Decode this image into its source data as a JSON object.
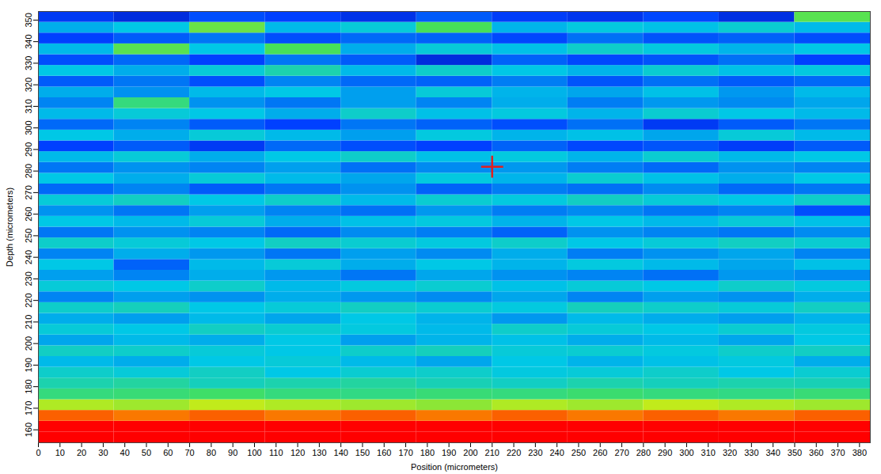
{
  "chart_data": {
    "type": "heatmap",
    "x_label": "Position (micrometers)",
    "y_label": "Depth (micrometers)",
    "xlim": [
      0,
      385
    ],
    "ylim": [
      154,
      354
    ],
    "xticks": [
      0,
      10,
      20,
      30,
      40,
      50,
      60,
      70,
      80,
      90,
      100,
      110,
      120,
      130,
      140,
      150,
      160,
      170,
      180,
      190,
      200,
      210,
      220,
      230,
      240,
      250,
      260,
      270,
      280,
      290,
      300,
      310,
      320,
      330,
      340,
      350,
      360,
      370,
      380
    ],
    "yticks": [
      160,
      170,
      180,
      190,
      200,
      210,
      220,
      230,
      240,
      250,
      260,
      270,
      280,
      290,
      300,
      310,
      320,
      330,
      340,
      350
    ],
    "zlim": [
      0,
      100
    ],
    "x_edges": [
      0,
      35,
      70,
      105,
      140,
      175,
      210,
      245,
      280,
      315,
      350,
      385
    ],
    "y_edges": [
      154,
      159,
      164,
      169,
      174,
      179,
      184,
      189,
      194,
      199,
      204,
      209,
      214,
      219,
      224,
      229,
      234,
      239,
      244,
      249,
      254,
      259,
      264,
      269,
      274,
      279,
      284,
      289,
      294,
      299,
      304,
      309,
      314,
      319,
      324,
      329,
      334,
      339,
      344,
      349,
      354
    ],
    "z": [
      [
        100,
        100,
        100,
        100,
        100,
        100,
        100,
        100,
        100,
        100,
        100
      ],
      [
        100,
        100,
        100,
        100,
        100,
        100,
        100,
        100,
        100,
        100,
        100
      ],
      [
        92,
        90,
        92,
        90,
        92,
        90,
        92,
        90,
        92,
        90,
        92
      ],
      [
        72,
        70,
        74,
        72,
        70,
        68,
        72,
        70,
        74,
        72,
        70
      ],
      [
        55,
        56,
        58,
        55,
        54,
        56,
        55,
        57,
        55,
        54,
        56
      ],
      [
        48,
        50,
        46,
        48,
        50,
        47,
        45,
        48,
        46,
        48,
        47
      ],
      [
        44,
        42,
        45,
        40,
        43,
        44,
        41,
        42,
        44,
        40,
        43
      ],
      [
        38,
        36,
        40,
        42,
        38,
        35,
        40,
        37,
        39,
        41,
        36
      ],
      [
        45,
        44,
        42,
        40,
        44,
        46,
        42,
        43,
        41,
        44,
        45
      ],
      [
        35,
        38,
        36,
        40,
        34,
        37,
        39,
        36,
        38,
        35,
        40
      ],
      [
        42,
        40,
        45,
        43,
        41,
        38,
        44,
        42,
        40,
        43,
        41
      ],
      [
        36,
        34,
        38,
        35,
        40,
        37,
        33,
        38,
        36,
        34,
        37
      ],
      [
        44,
        46,
        40,
        42,
        45,
        43,
        41,
        46,
        44,
        42,
        45
      ],
      [
        30,
        34,
        32,
        36,
        33,
        31,
        35,
        30,
        34,
        32,
        36
      ],
      [
        42,
        40,
        44,
        38,
        41,
        43,
        39,
        42,
        40,
        44,
        41
      ],
      [
        34,
        30,
        36,
        33,
        28,
        35,
        32,
        30,
        27,
        33,
        31
      ],
      [
        40,
        25,
        38,
        42,
        36,
        40,
        37,
        41,
        38,
        35,
        39
      ],
      [
        30,
        36,
        33,
        28,
        34,
        31,
        36,
        29,
        32,
        35,
        30
      ],
      [
        44,
        42,
        40,
        45,
        43,
        41,
        44,
        40,
        42,
        45,
        43
      ],
      [
        28,
        32,
        30,
        26,
        31,
        29,
        25,
        32,
        30,
        28,
        31
      ],
      [
        40,
        38,
        42,
        36,
        39,
        41,
        37,
        40,
        38,
        42,
        39
      ],
      [
        32,
        28,
        34,
        30,
        27,
        33,
        29,
        31,
        28,
        30,
        22
      ],
      [
        42,
        45,
        40,
        44,
        38,
        43,
        41,
        45,
        42,
        40,
        44
      ],
      [
        26,
        30,
        24,
        28,
        32,
        25,
        29,
        27,
        31,
        26,
        28
      ],
      [
        40,
        36,
        42,
        38,
        35,
        41,
        37,
        43,
        39,
        36,
        40
      ],
      [
        28,
        32,
        30,
        34,
        27,
        31,
        33,
        29,
        26,
        32,
        30
      ],
      [
        38,
        42,
        36,
        40,
        44,
        39,
        41,
        37,
        43,
        38,
        40
      ],
      [
        20,
        24,
        18,
        26,
        22,
        20,
        25,
        21,
        23,
        19,
        24
      ],
      [
        40,
        36,
        42,
        38,
        34,
        41,
        37,
        39,
        35,
        42,
        38
      ],
      [
        26,
        30,
        24,
        20,
        28,
        25,
        22,
        27,
        18,
        24,
        28
      ],
      [
        38,
        42,
        40,
        36,
        44,
        39,
        41,
        37,
        43,
        40,
        38
      ],
      [
        30,
        55,
        32,
        28,
        34,
        30,
        36,
        29,
        33,
        31,
        35
      ],
      [
        36,
        32,
        38,
        40,
        34,
        42,
        37,
        35,
        39,
        33,
        38
      ],
      [
        24,
        28,
        22,
        30,
        26,
        25,
        29,
        23,
        27,
        24,
        26
      ],
      [
        40,
        36,
        42,
        48,
        38,
        44,
        40,
        37,
        43,
        39,
        41
      ],
      [
        22,
        26,
        20,
        28,
        24,
        14,
        25,
        21,
        23,
        27,
        20
      ],
      [
        38,
        62,
        40,
        60,
        36,
        42,
        39,
        44,
        41,
        37,
        40
      ],
      [
        20,
        24,
        28,
        22,
        26,
        25,
        21,
        27,
        23,
        25,
        22
      ],
      [
        36,
        40,
        64,
        38,
        42,
        60,
        37,
        41,
        39,
        43,
        38
      ],
      [
        18,
        14,
        22,
        20,
        16,
        24,
        19,
        17,
        21,
        15,
        62
      ]
    ],
    "cursor": {
      "x": 210,
      "y": 282,
      "color": "#e02020",
      "marker": "plus"
    }
  }
}
